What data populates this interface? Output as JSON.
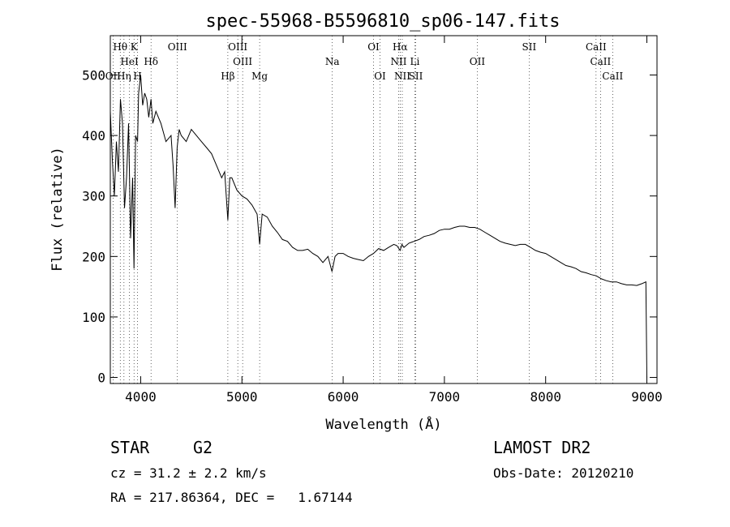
{
  "chart_data": {
    "type": "line",
    "title": "spec-55968-B5596810_sp06-147.fits",
    "xlabel": "Wavelength (Å)",
    "ylabel": "Flux (relative)",
    "xlim": [
      3700,
      9100
    ],
    "ylim": [
      -10,
      565
    ],
    "xticks": [
      4000,
      5000,
      6000,
      7000,
      8000,
      9000
    ],
    "yticks": [
      0,
      100,
      200,
      300,
      400,
      500
    ],
    "grid": false,
    "legend": "none",
    "series": [
      {
        "x": [
          3700,
          3720,
          3740,
          3760,
          3780,
          3800,
          3820,
          3840,
          3860,
          3880,
          3900,
          3920,
          3934,
          3950,
          3969,
          3980,
          4000,
          4020,
          4040,
          4060,
          4080,
          4102,
          4120,
          4150,
          4200,
          4250,
          4300,
          4320,
          4340,
          4360,
          4380,
          4400,
          4450,
          4500,
          4550,
          4600,
          4650,
          4700,
          4750,
          4800,
          4830,
          4861,
          4880,
          4900,
          4950,
          5000,
          5050,
          5100,
          5150,
          5175,
          5200,
          5250,
          5300,
          5350,
          5400,
          5450,
          5500,
          5550,
          5600,
          5650,
          5700,
          5750,
          5800,
          5850,
          5890,
          5920,
          5950,
          6000,
          6050,
          6100,
          6150,
          6200,
          6250,
          6300,
          6350,
          6400,
          6450,
          6500,
          6530,
          6563,
          6580,
          6600,
          6650,
          6700,
          6750,
          6800,
          6850,
          6900,
          6950,
          7000,
          7050,
          7100,
          7150,
          7200,
          7250,
          7300,
          7350,
          7400,
          7450,
          7500,
          7550,
          7600,
          7650,
          7700,
          7750,
          7800,
          7850,
          7900,
          7950,
          8000,
          8050,
          8100,
          8150,
          8200,
          8250,
          8300,
          8350,
          8400,
          8450,
          8500,
          8550,
          8600,
          8650,
          8700,
          8750,
          8800,
          8850,
          8900,
          8950,
          8990,
          9000
        ],
        "y": [
          440,
          360,
          300,
          390,
          340,
          460,
          420,
          280,
          330,
          420,
          230,
          330,
          180,
          400,
          390,
          470,
          500,
          450,
          470,
          460,
          430,
          460,
          420,
          440,
          420,
          390,
          400,
          350,
          280,
          380,
          410,
          400,
          390,
          410,
          400,
          390,
          380,
          370,
          350,
          330,
          340,
          260,
          330,
          330,
          310,
          300,
          295,
          285,
          270,
          220,
          270,
          265,
          250,
          240,
          228,
          225,
          215,
          210,
          210,
          212,
          205,
          200,
          190,
          200,
          175,
          200,
          205,
          205,
          200,
          197,
          195,
          193,
          200,
          205,
          213,
          210,
          215,
          220,
          218,
          210,
          220,
          215,
          222,
          225,
          228,
          233,
          235,
          238,
          243,
          245,
          245,
          248,
          250,
          250,
          248,
          248,
          245,
          240,
          235,
          230,
          225,
          222,
          220,
          218,
          220,
          220,
          215,
          210,
          207,
          205,
          200,
          195,
          190,
          185,
          183,
          180,
          175,
          173,
          170,
          168,
          163,
          160,
          158,
          158,
          155,
          153,
          153,
          152,
          155,
          158,
          0
        ]
      }
    ],
    "line_markers": [
      {
        "label": "Hθ",
        "x": 3798,
        "row": 1
      },
      {
        "label": "K",
        "x": 3934,
        "row": 1
      },
      {
        "label": "OIII",
        "x": 4363,
        "row": 1
      },
      {
        "label": "OIII",
        "x": 4959,
        "row": 1
      },
      {
        "label": "OI",
        "x": 6300,
        "row": 1
      },
      {
        "label": "Hα",
        "x": 6563,
        "row": 1
      },
      {
        "label": "SII",
        "x": 7837,
        "row": 1
      },
      {
        "label": "CaII",
        "x": 8498,
        "row": 1
      },
      {
        "label": "HeI",
        "x": 3889,
        "row": 2
      },
      {
        "label": "Hδ",
        "x": 4102,
        "row": 2
      },
      {
        "label": "OIII",
        "x": 5007,
        "row": 2
      },
      {
        "label": "Na",
        "x": 5893,
        "row": 2
      },
      {
        "label": "NII",
        "x": 6548,
        "row": 2
      },
      {
        "label": "Li",
        "x": 6708,
        "row": 2
      },
      {
        "label": "OII",
        "x": 7325,
        "row": 2
      },
      {
        "label": "CaII",
        "x": 8542,
        "row": 2
      },
      {
        "label": "OII",
        "x": 3727,
        "row": 3
      },
      {
        "label": "Hη",
        "x": 3835,
        "row": 3
      },
      {
        "label": "H",
        "x": 3969,
        "row": 3
      },
      {
        "label": "Hβ",
        "x": 4861,
        "row": 3
      },
      {
        "label": "Mg",
        "x": 5175,
        "row": 3
      },
      {
        "label": "OI",
        "x": 6364,
        "row": 3
      },
      {
        "label": "NII",
        "x": 6584,
        "row": 3
      },
      {
        "label": "SII",
        "x": 6717,
        "row": 3
      },
      {
        "label": "CaII",
        "x": 8662,
        "row": 3
      }
    ]
  },
  "info": {
    "object_class": "STAR",
    "subclass": "G2",
    "survey": "LAMOST DR2",
    "cz": "cz = 31.2 ± 2.2 km/s",
    "obs_date": "Obs-Date: 20120210",
    "coords": "RA = 217.86364, DEC =   1.67144"
  }
}
